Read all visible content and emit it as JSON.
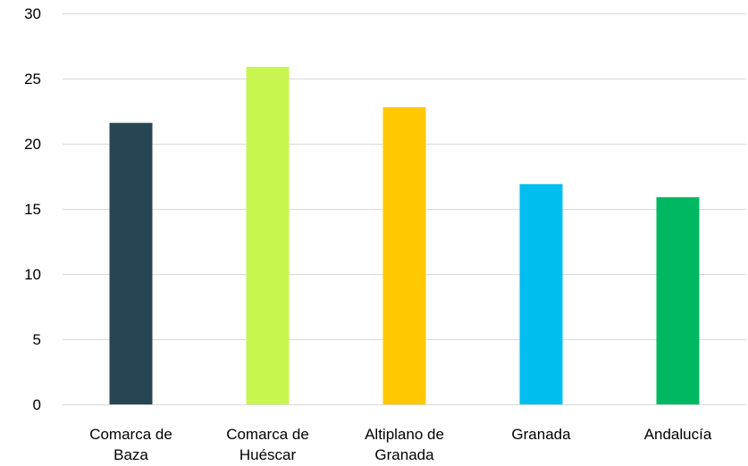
{
  "chart_data": {
    "type": "bar",
    "title": "",
    "xlabel": "",
    "ylabel": "",
    "categories": [
      [
        "Comarca de",
        "Baza"
      ],
      [
        "Comarca de",
        "Huéscar"
      ],
      [
        "Altiplano de",
        "Granada"
      ],
      [
        "Granada"
      ],
      [
        "Andalucía"
      ]
    ],
    "values": [
      21.6,
      25.9,
      22.8,
      16.9,
      15.9
    ],
    "colors": [
      "#264653",
      "#c9f551",
      "#ffc800",
      "#00bff0",
      "#00b862"
    ],
    "ylim": [
      0,
      30
    ],
    "yticks": [
      0,
      5,
      10,
      15,
      20,
      25,
      30
    ],
    "grid": true,
    "legend": "none"
  }
}
